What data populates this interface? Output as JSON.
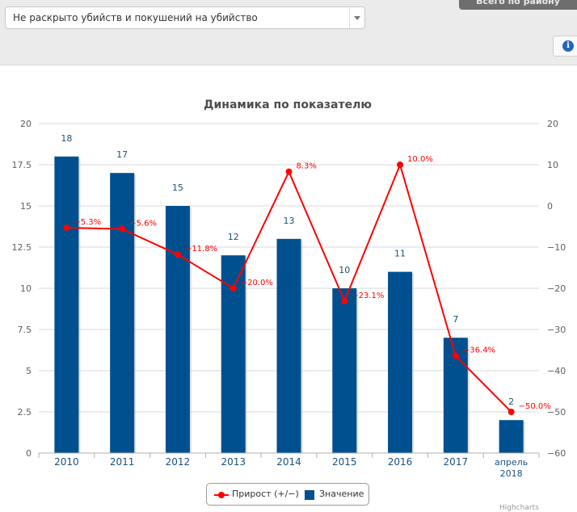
{
  "filter": {
    "selected": "Не раскрыто убийств и покушений на убийство"
  },
  "header": {
    "tab_label": "Всего по району",
    "info_icon": "info-icon"
  },
  "chart_data": {
    "type": "bar",
    "title": "Динамика по показателю",
    "categories": [
      "2010",
      "2011",
      "2012",
      "2013",
      "2014",
      "2015",
      "2016",
      "2017",
      "апрель 2018"
    ],
    "y_left": {
      "ylim": [
        0,
        20
      ],
      "ticks": [
        "0",
        "2.5",
        "5",
        "7.5",
        "10",
        "12.5",
        "15",
        "17.5",
        "20"
      ]
    },
    "y_right": {
      "ylim": [
        -60,
        20
      ],
      "ticks": [
        "-60",
        "-50",
        "-40",
        "-30",
        "-20",
        "-10",
        "0",
        "10",
        "20"
      ]
    },
    "series": [
      {
        "name": "Значение",
        "type": "bar",
        "axis": "left",
        "color": "#00508f",
        "values": [
          18,
          17,
          15,
          12,
          13,
          10,
          11,
          7,
          2
        ],
        "labels": [
          "18",
          "17",
          "15",
          "12",
          "13",
          "10",
          "11",
          "7",
          "2"
        ]
      },
      {
        "name": "Прирост (+/−)",
        "type": "line",
        "axis": "right",
        "color": "#ff0000",
        "values": [
          -5.3,
          -5.6,
          -11.8,
          -20.0,
          8.3,
          -23.1,
          10.0,
          -36.4,
          -50.0
        ],
        "labels": [
          "-5.3%",
          "-5.6%",
          "-11.8%",
          "-20.0%",
          "8.3%",
          "-23.1%",
          "10.0%",
          "-36.4%",
          "-50.0%"
        ]
      }
    ],
    "legend": [
      "Прирост (+/−)",
      "Значение"
    ],
    "legend_position": "bottom",
    "grid": true
  },
  "credit": "Highcharts"
}
